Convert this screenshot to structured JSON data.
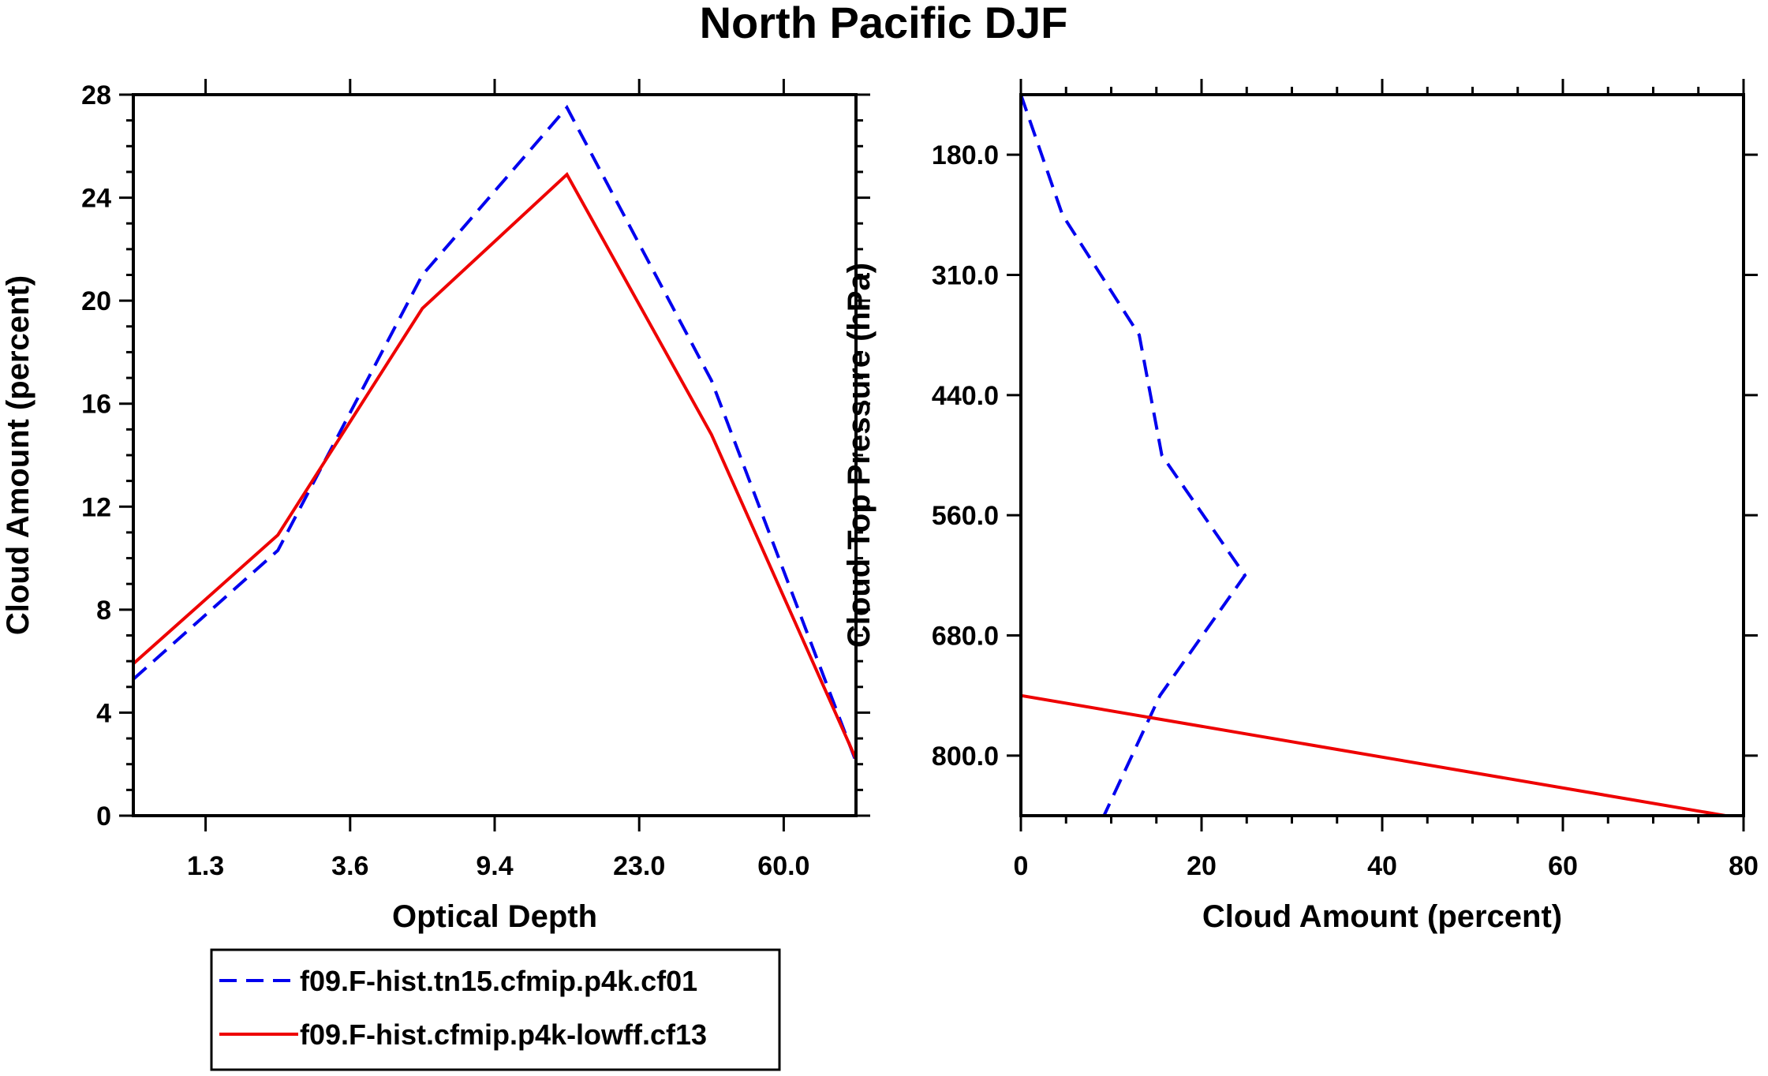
{
  "title": "North Pacific DJF",
  "colors": {
    "series1": "#0000ee",
    "series2": "#ee0000",
    "axis": "#000000"
  },
  "chart_data": [
    {
      "type": "line",
      "xlabel": "Optical Depth",
      "ylabel": "Cloud Amount (percent)",
      "x_tick_labels": [
        "1.3",
        "3.6",
        "9.4",
        "23.0",
        "60.0"
      ],
      "x_bins": 5,
      "ylim": [
        0,
        28
      ],
      "y_ticks": [
        0,
        4,
        8,
        12,
        16,
        20,
        24,
        28
      ],
      "x": [
        0,
        1,
        2,
        3,
        4,
        5
      ],
      "series": [
        {
          "name": "f09.F-hist.tn15.cfmip.p4k.cf01",
          "style": "dashed",
          "color": "#0000ee",
          "values": [
            5.3,
            10.3,
            21.0,
            27.5,
            16.9,
            2.1
          ]
        },
        {
          "name": "f09.F-hist.cfmip.p4k-lowff.cf13",
          "style": "solid",
          "color": "#ee0000",
          "values": [
            5.9,
            10.9,
            19.7,
            24.9,
            14.8,
            2.2
          ]
        }
      ]
    },
    {
      "type": "line",
      "xlabel": "Cloud Amount (percent)",
      "ylabel": "Cloud Top Pressure (hPa)",
      "xlim": [
        0,
        80
      ],
      "x_ticks": [
        0,
        20,
        40,
        60,
        80
      ],
      "y_tick_labels": [
        "180.0",
        "310.0",
        "440.0",
        "560.0",
        "680.0",
        "800.0"
      ],
      "y_bins": 6,
      "y": [
        0,
        1,
        2,
        3,
        4,
        5,
        6
      ],
      "series": [
        {
          "name": "f09.F-hist.tn15.cfmip.p4k.cf01",
          "style": "dashed",
          "color": "#0000ee",
          "values": [
            0,
            4.6,
            13.1,
            15.6,
            24.8,
            15.4,
            9.2
          ]
        },
        {
          "name": "f09.F-hist.cfmip.p4k-lowff.cf13",
          "style": "solid",
          "color": "#ee0000",
          "values": [
            0,
            0,
            0,
            0,
            0,
            0,
            78.0
          ]
        }
      ]
    }
  ],
  "legend": [
    {
      "label": "f09.F-hist.tn15.cfmip.p4k.cf01",
      "style": "dashed",
      "color": "#0000ee"
    },
    {
      "label": "f09.F-hist.cfmip.p4k-lowff.cf13",
      "style": "solid",
      "color": "#ee0000"
    }
  ]
}
